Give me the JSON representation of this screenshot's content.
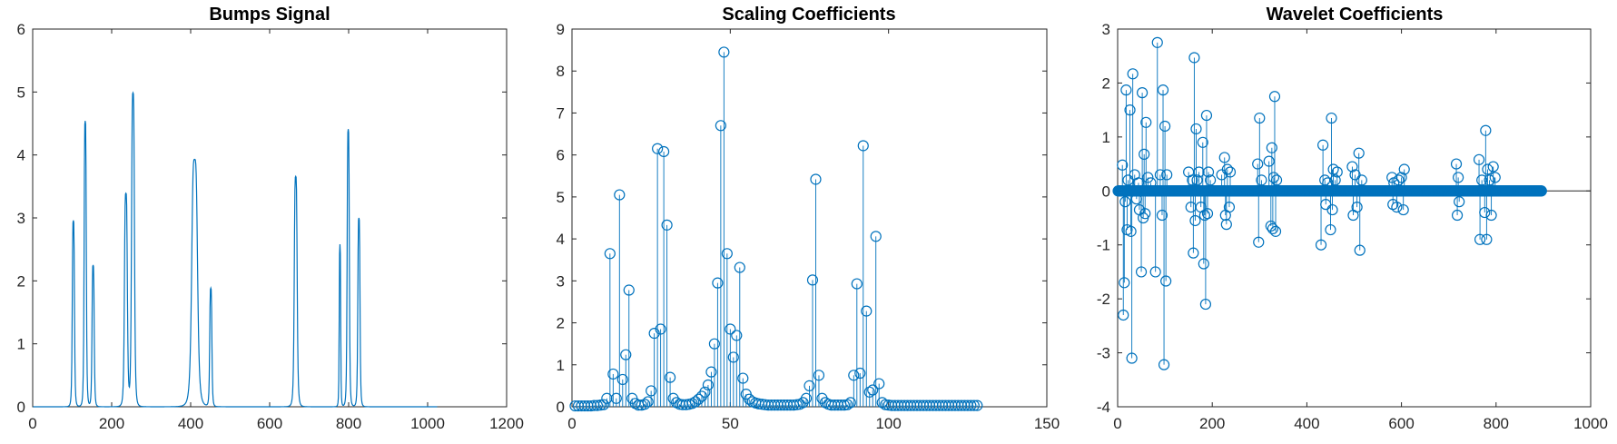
{
  "figure": {
    "stem_color": "#0072BD",
    "baseline_color": "#262626"
  },
  "chart_data": [
    {
      "type": "line",
      "title": "Bumps Signal",
      "xlabel": "",
      "ylabel": "",
      "xlim": [
        0,
        1200
      ],
      "ylim": [
        0,
        6
      ],
      "xticks": [
        0,
        200,
        400,
        600,
        800,
        1000,
        1200
      ],
      "yticks": [
        0,
        1,
        2,
        3,
        4,
        5,
        6
      ],
      "grid": false,
      "x_range": [
        1,
        1024
      ],
      "peaks": [
        {
          "pos": 103,
          "height": 2.96,
          "width": 3
        },
        {
          "pos": 133,
          "height": 4.54,
          "width": 3
        },
        {
          "pos": 153,
          "height": 2.25,
          "width": 3
        },
        {
          "pos": 236,
          "height": 3.38,
          "width": 4
        },
        {
          "pos": 254,
          "height": 4.98,
          "width": 4
        },
        {
          "pos": 410,
          "height": 3.93,
          "width": 8
        },
        {
          "pos": 451,
          "height": 1.88,
          "width": 3
        },
        {
          "pos": 666,
          "height": 3.66,
          "width": 4
        },
        {
          "pos": 778,
          "height": 2.58,
          "width": 2
        },
        {
          "pos": 799,
          "height": 4.41,
          "width": 3
        },
        {
          "pos": 826,
          "height": 3.0,
          "width": 3
        }
      ]
    },
    {
      "type": "stem",
      "title": "Scaling Coefficients",
      "xlabel": "",
      "ylabel": "",
      "xlim": [
        0,
        150
      ],
      "ylim": [
        0,
        9
      ],
      "xticks": [
        0,
        50,
        100,
        150
      ],
      "yticks": [
        0,
        1,
        2,
        3,
        4,
        5,
        6,
        7,
        8,
        9
      ],
      "grid": false,
      "x": [
        1,
        2,
        3,
        4,
        5,
        6,
        7,
        8,
        9,
        10,
        11,
        12,
        13,
        14,
        15,
        16,
        17,
        18,
        19,
        20,
        21,
        22,
        23,
        24,
        25,
        26,
        27,
        28,
        29,
        30,
        31,
        32,
        33,
        34,
        35,
        36,
        37,
        38,
        39,
        40,
        41,
        42,
        43,
        44,
        45,
        46,
        47,
        48,
        49,
        50,
        51,
        52,
        53,
        54,
        55,
        56,
        57,
        58,
        59,
        60,
        61,
        62,
        63,
        64,
        65,
        66,
        67,
        68,
        69,
        70,
        71,
        72,
        73,
        74,
        75,
        76,
        77,
        78,
        79,
        80,
        81,
        82,
        83,
        84,
        85,
        86,
        87,
        88,
        89,
        90,
        91,
        92,
        93,
        94,
        95,
        96,
        97,
        98,
        99,
        100,
        101,
        102,
        103,
        104,
        105,
        106,
        107,
        108,
        109,
        110,
        111,
        112,
        113,
        114,
        115,
        116,
        117,
        118,
        119,
        120,
        121,
        122,
        123,
        124,
        125,
        126,
        127,
        128
      ],
      "values": [
        0.02,
        0.02,
        0.02,
        0.02,
        0.02,
        0.02,
        0.03,
        0.03,
        0.04,
        0.05,
        0.2,
        3.65,
        0.78,
        0.2,
        5.05,
        0.65,
        1.24,
        2.78,
        0.2,
        0.08,
        0.04,
        0.04,
        0.06,
        0.12,
        0.38,
        1.75,
        6.15,
        1.85,
        6.08,
        4.33,
        0.7,
        0.2,
        0.1,
        0.06,
        0.05,
        0.05,
        0.06,
        0.08,
        0.12,
        0.18,
        0.25,
        0.35,
        0.52,
        0.83,
        1.5,
        2.95,
        6.7,
        8.45,
        3.65,
        1.85,
        1.18,
        1.7,
        3.32,
        0.68,
        0.3,
        0.18,
        0.12,
        0.09,
        0.07,
        0.06,
        0.05,
        0.04,
        0.04,
        0.04,
        0.04,
        0.04,
        0.04,
        0.04,
        0.04,
        0.04,
        0.05,
        0.06,
        0.1,
        0.2,
        0.5,
        3.02,
        5.42,
        0.75,
        0.2,
        0.1,
        0.06,
        0.04,
        0.04,
        0.04,
        0.04,
        0.04,
        0.05,
        0.1,
        0.75,
        2.93,
        0.8,
        6.22,
        2.28,
        0.35,
        0.4,
        4.06,
        0.55,
        0.1,
        0.05,
        0.04,
        0.03,
        0.03,
        0.03,
        0.03,
        0.03,
        0.03,
        0.03,
        0.03,
        0.03,
        0.03,
        0.03,
        0.03,
        0.03,
        0.03,
        0.03,
        0.03,
        0.03,
        0.03,
        0.03,
        0.03,
        0.03,
        0.03,
        0.03,
        0.03,
        0.03,
        0.03,
        0.03,
        0.03
      ]
    },
    {
      "type": "stem",
      "title": "Wavelet Coefficients",
      "xlabel": "",
      "ylabel": "",
      "xlim": [
        0,
        1000
      ],
      "ylim": [
        -4,
        3
      ],
      "xticks": [
        0,
        200,
        400,
        600,
        800,
        1000
      ],
      "yticks": [
        -4,
        -3,
        -2,
        -1,
        0,
        1,
        2,
        3
      ],
      "grid": false,
      "x_range": [
        1,
        896
      ],
      "nonzero": [
        {
          "x": 10,
          "y": 0.48
        },
        {
          "x": 12,
          "y": -2.3
        },
        {
          "x": 14,
          "y": -1.7
        },
        {
          "x": 16,
          "y": -0.2
        },
        {
          "x": 18,
          "y": 1.87
        },
        {
          "x": 20,
          "y": -0.72
        },
        {
          "x": 22,
          "y": 0.2
        },
        {
          "x": 26,
          "y": 1.5
        },
        {
          "x": 28,
          "y": -0.75
        },
        {
          "x": 30,
          "y": -3.1
        },
        {
          "x": 32,
          "y": 2.17
        },
        {
          "x": 36,
          "y": 0.3
        },
        {
          "x": 40,
          "y": -0.15
        },
        {
          "x": 44,
          "y": 0.15
        },
        {
          "x": 46,
          "y": -0.35
        },
        {
          "x": 50,
          "y": -1.5
        },
        {
          "x": 52,
          "y": 1.82
        },
        {
          "x": 54,
          "y": -0.5
        },
        {
          "x": 56,
          "y": 0.68
        },
        {
          "x": 58,
          "y": -0.42
        },
        {
          "x": 60,
          "y": 1.27
        },
        {
          "x": 64,
          "y": 0.25
        },
        {
          "x": 70,
          "y": 0.15
        },
        {
          "x": 80,
          "y": -1.5
        },
        {
          "x": 84,
          "y": 2.75
        },
        {
          "x": 90,
          "y": 0.3
        },
        {
          "x": 94,
          "y": -0.45
        },
        {
          "x": 96,
          "y": 1.87
        },
        {
          "x": 98,
          "y": -3.22
        },
        {
          "x": 100,
          "y": 1.2
        },
        {
          "x": 102,
          "y": -1.67
        },
        {
          "x": 104,
          "y": 0.3
        },
        {
          "x": 150,
          "y": 0.35
        },
        {
          "x": 155,
          "y": -0.3
        },
        {
          "x": 158,
          "y": 0.2
        },
        {
          "x": 160,
          "y": -1.15
        },
        {
          "x": 162,
          "y": 2.47
        },
        {
          "x": 164,
          "y": -0.55
        },
        {
          "x": 166,
          "y": 1.15
        },
        {
          "x": 168,
          "y": 0.2
        },
        {
          "x": 172,
          "y": 0.35
        },
        {
          "x": 176,
          "y": -0.3
        },
        {
          "x": 180,
          "y": 0.9
        },
        {
          "x": 182,
          "y": -1.35
        },
        {
          "x": 184,
          "y": -0.45
        },
        {
          "x": 186,
          "y": -2.1
        },
        {
          "x": 188,
          "y": 1.4
        },
        {
          "x": 190,
          "y": -0.42
        },
        {
          "x": 192,
          "y": 0.35
        },
        {
          "x": 196,
          "y": 0.2
        },
        {
          "x": 220,
          "y": 0.3
        },
        {
          "x": 226,
          "y": 0.62
        },
        {
          "x": 228,
          "y": -0.45
        },
        {
          "x": 230,
          "y": -0.62
        },
        {
          "x": 232,
          "y": 0.4
        },
        {
          "x": 236,
          "y": -0.3
        },
        {
          "x": 238,
          "y": 0.35
        },
        {
          "x": 296,
          "y": 0.5
        },
        {
          "x": 298,
          "y": -0.95
        },
        {
          "x": 300,
          "y": 1.35
        },
        {
          "x": 304,
          "y": 0.2
        },
        {
          "x": 320,
          "y": 0.55
        },
        {
          "x": 324,
          "y": -0.65
        },
        {
          "x": 326,
          "y": 0.8
        },
        {
          "x": 328,
          "y": -0.7
        },
        {
          "x": 330,
          "y": 0.25
        },
        {
          "x": 332,
          "y": 1.75
        },
        {
          "x": 334,
          "y": -0.75
        },
        {
          "x": 336,
          "y": 0.2
        },
        {
          "x": 430,
          "y": -1.0
        },
        {
          "x": 434,
          "y": 0.85
        },
        {
          "x": 438,
          "y": 0.2
        },
        {
          "x": 440,
          "y": -0.25
        },
        {
          "x": 444,
          "y": 0.15
        },
        {
          "x": 450,
          "y": -0.72
        },
        {
          "x": 452,
          "y": 1.35
        },
        {
          "x": 454,
          "y": -0.35
        },
        {
          "x": 456,
          "y": 0.4
        },
        {
          "x": 460,
          "y": 0.2
        },
        {
          "x": 464,
          "y": 0.35
        },
        {
          "x": 496,
          "y": 0.45
        },
        {
          "x": 498,
          "y": -0.45
        },
        {
          "x": 502,
          "y": 0.3
        },
        {
          "x": 506,
          "y": -0.3
        },
        {
          "x": 510,
          "y": 0.7
        },
        {
          "x": 512,
          "y": -1.1
        },
        {
          "x": 516,
          "y": 0.2
        },
        {
          "x": 580,
          "y": 0.25
        },
        {
          "x": 582,
          "y": -0.25
        },
        {
          "x": 584,
          "y": 0.15
        },
        {
          "x": 590,
          "y": -0.3
        },
        {
          "x": 594,
          "y": 0.2
        },
        {
          "x": 600,
          "y": 0.25
        },
        {
          "x": 604,
          "y": -0.35
        },
        {
          "x": 606,
          "y": 0.4
        },
        {
          "x": 716,
          "y": 0.5
        },
        {
          "x": 718,
          "y": -0.45
        },
        {
          "x": 720,
          "y": 0.25
        },
        {
          "x": 722,
          "y": -0.2
        },
        {
          "x": 764,
          "y": 0.58
        },
        {
          "x": 766,
          "y": -0.9
        },
        {
          "x": 770,
          "y": 0.2
        },
        {
          "x": 776,
          "y": -0.4
        },
        {
          "x": 778,
          "y": 1.12
        },
        {
          "x": 780,
          "y": -0.9
        },
        {
          "x": 782,
          "y": 0.4
        },
        {
          "x": 786,
          "y": 0.2
        },
        {
          "x": 790,
          "y": -0.45
        },
        {
          "x": 794,
          "y": 0.45
        },
        {
          "x": 798,
          "y": 0.25
        }
      ]
    }
  ]
}
